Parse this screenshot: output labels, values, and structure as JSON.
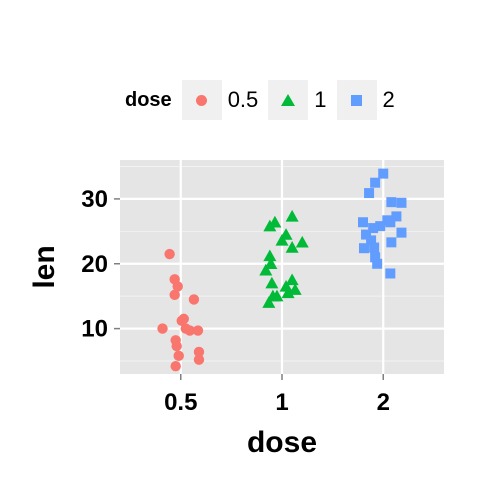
{
  "chart_data": {
    "type": "scatter",
    "xlabel": "dose",
    "ylabel": "len",
    "categories": [
      "0.5",
      "1",
      "2"
    ],
    "ylim": [
      3,
      36
    ],
    "yticks": [
      10,
      20,
      30
    ],
    "grid": true,
    "legend": {
      "title": "dose",
      "placement": "top",
      "entries": [
        {
          "label": "0.5",
          "shape": "circle",
          "color": "#F8766D"
        },
        {
          "label": "1",
          "shape": "triangle",
          "color": "#00BA38"
        },
        {
          "label": "2",
          "shape": "square",
          "color": "#619CFF"
        }
      ]
    },
    "series": [
      {
        "category": "0.5",
        "shape": "circle",
        "color": "#F8766D",
        "points": [
          {
            "x": 0.89,
            "y": 21.5
          },
          {
            "x": 0.94,
            "y": 17.6
          },
          {
            "x": 0.97,
            "y": 16.5
          },
          {
            "x": 0.94,
            "y": 15.2
          },
          {
            "x": 1.13,
            "y": 14.5
          },
          {
            "x": 1.03,
            "y": 11.5
          },
          {
            "x": 1.01,
            "y": 11.2
          },
          {
            "x": 1.05,
            "y": 10.0
          },
          {
            "x": 1.09,
            "y": 9.7
          },
          {
            "x": 1.17,
            "y": 9.7
          },
          {
            "x": 0.82,
            "y": 10.0
          },
          {
            "x": 0.95,
            "y": 8.2
          },
          {
            "x": 0.96,
            "y": 7.3
          },
          {
            "x": 1.18,
            "y": 6.4
          },
          {
            "x": 0.98,
            "y": 5.8
          },
          {
            "x": 1.18,
            "y": 5.2
          },
          {
            "x": 0.95,
            "y": 4.2
          }
        ]
      },
      {
        "category": "1",
        "shape": "triangle",
        "color": "#00BA38",
        "points": [
          {
            "x": 2.1,
            "y": 27.3
          },
          {
            "x": 1.93,
            "y": 26.4
          },
          {
            "x": 1.88,
            "y": 25.8
          },
          {
            "x": 2.04,
            "y": 24.5
          },
          {
            "x": 2.0,
            "y": 23.6
          },
          {
            "x": 2.2,
            "y": 23.3
          },
          {
            "x": 2.1,
            "y": 22.5
          },
          {
            "x": 1.88,
            "y": 21.2
          },
          {
            "x": 1.89,
            "y": 20.0
          },
          {
            "x": 1.84,
            "y": 19.0
          },
          {
            "x": 2.1,
            "y": 17.5
          },
          {
            "x": 2.04,
            "y": 16.5
          },
          {
            "x": 1.9,
            "y": 17.0
          },
          {
            "x": 2.06,
            "y": 15.5
          },
          {
            "x": 2.13,
            "y": 16.0
          },
          {
            "x": 1.95,
            "y": 15.0
          },
          {
            "x": 1.87,
            "y": 14.0
          },
          {
            "x": 1.91,
            "y": 15.0
          }
        ]
      },
      {
        "category": "2",
        "shape": "square",
        "color": "#619CFF",
        "points": [
          {
            "x": 3.0,
            "y": 33.9
          },
          {
            "x": 2.92,
            "y": 32.5
          },
          {
            "x": 2.86,
            "y": 30.9
          },
          {
            "x": 3.08,
            "y": 29.5
          },
          {
            "x": 3.18,
            "y": 29.4
          },
          {
            "x": 3.13,
            "y": 27.3
          },
          {
            "x": 3.04,
            "y": 26.7
          },
          {
            "x": 2.8,
            "y": 26.4
          },
          {
            "x": 3.07,
            "y": 26.4
          },
          {
            "x": 2.97,
            "y": 25.8
          },
          {
            "x": 2.9,
            "y": 25.5
          },
          {
            "x": 3.18,
            "y": 24.8
          },
          {
            "x": 2.83,
            "y": 24.5
          },
          {
            "x": 2.88,
            "y": 23.6
          },
          {
            "x": 3.08,
            "y": 23.3
          },
          {
            "x": 2.81,
            "y": 22.4
          },
          {
            "x": 2.91,
            "y": 22.5
          },
          {
            "x": 2.92,
            "y": 21.0
          },
          {
            "x": 2.94,
            "y": 20.0
          },
          {
            "x": 3.07,
            "y": 18.5
          }
        ]
      }
    ]
  }
}
